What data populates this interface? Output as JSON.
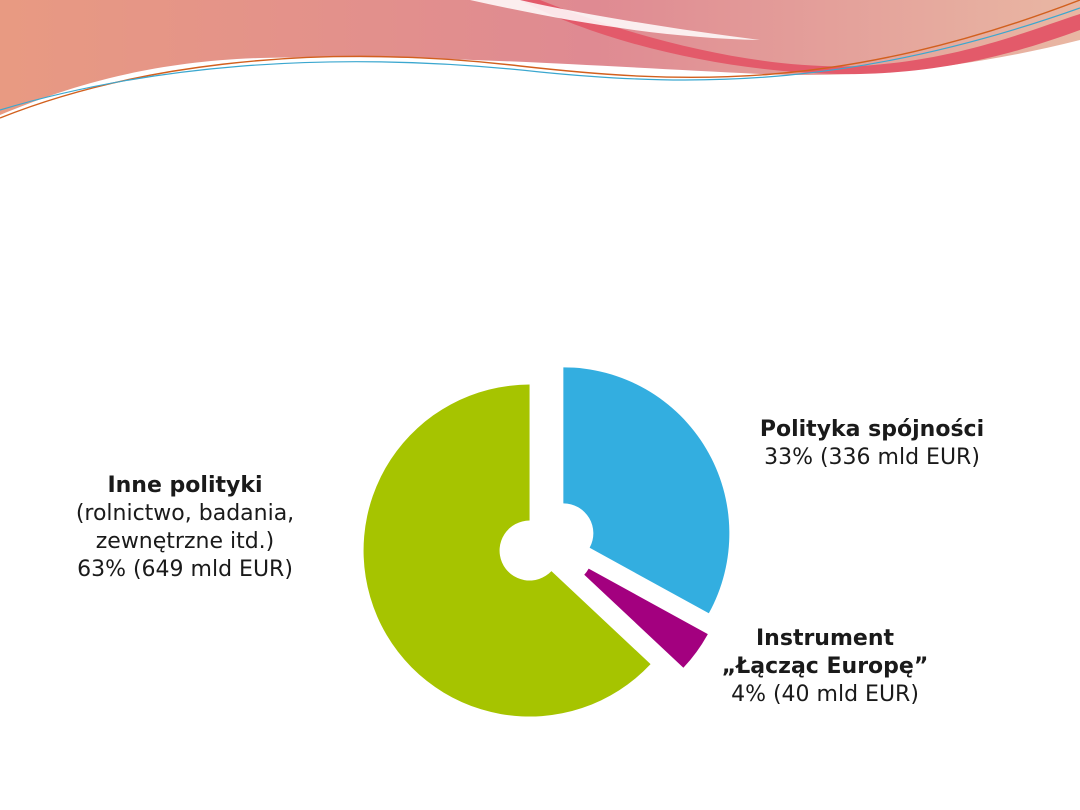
{
  "colors": {
    "header_start": "#e89a82",
    "header_mid": "#df8a92",
    "header_end": "#e9b7a3",
    "header_accent": "#e35a6a",
    "line_orange": "#d2601e",
    "line_blue": "#3ba7cf"
  },
  "chart_data": {
    "type": "pie",
    "style": "exploded donut",
    "slices": [
      {
        "name_key": "spojnosci",
        "value": 33,
        "amount": 336,
        "color": "#33aee0"
      },
      {
        "name_key": "instrument",
        "value": 4,
        "amount": 40,
        "color": "#a3007f"
      },
      {
        "name_key": "inne",
        "value": 63,
        "amount": 649,
        "color": "#a6c400"
      }
    ],
    "unit": "mld EUR"
  },
  "labels": {
    "inne": {
      "name": "Inne polityki",
      "line1": "(rolnictwo, badania,",
      "line2": "zewnętrzne itd.)",
      "value": "63% (649 mld EUR)"
    },
    "spojnosci": {
      "name": "Polityka spójności",
      "value": "33% (336 mld EUR)"
    },
    "instrument": {
      "name1": "Instrument",
      "name2": "„Łącząc Europę”",
      "value": "4% (40 mld EUR)"
    }
  }
}
